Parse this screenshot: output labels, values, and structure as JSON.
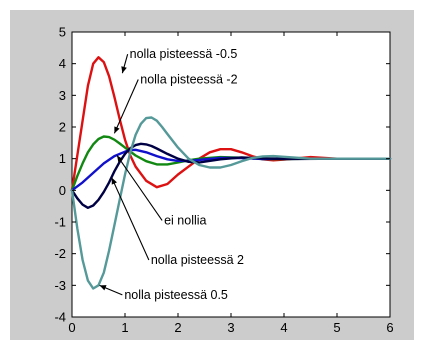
{
  "chart_data": {
    "type": "line",
    "title": "",
    "xlabel": "",
    "ylabel": "",
    "xlim": [
      0,
      6
    ],
    "ylim": [
      -4,
      5
    ],
    "xticks": [
      0,
      1,
      2,
      3,
      4,
      5,
      6
    ],
    "yticks": [
      -4,
      -3,
      -2,
      -1,
      0,
      1,
      2,
      3,
      4,
      5
    ],
    "grid": false,
    "legend": "none",
    "series": [
      {
        "color": "#dd1111",
        "x": [
          0,
          0.1,
          0.2,
          0.3,
          0.4,
          0.5,
          0.6,
          0.7,
          0.8,
          0.9,
          1.0,
          1.1,
          1.2,
          1.4,
          1.6,
          1.8,
          2.0,
          2.2,
          2.4,
          2.6,
          2.8,
          3.0,
          3.2,
          3.4,
          3.6,
          3.8,
          4.0,
          4.5,
          5.0,
          5.5,
          6.0
        ],
        "y": [
          0,
          1.1,
          2.2,
          3.3,
          4.0,
          4.2,
          4.05,
          3.6,
          2.95,
          2.25,
          1.6,
          1.1,
          0.75,
          0.3,
          0.1,
          0.2,
          0.5,
          0.75,
          1.0,
          1.2,
          1.3,
          1.3,
          1.2,
          1.08,
          0.98,
          0.95,
          0.97,
          1.05,
          1.0,
          1.0,
          1.0
        ]
      },
      {
        "color": "#118811",
        "x": [
          0,
          0.1,
          0.2,
          0.3,
          0.4,
          0.5,
          0.6,
          0.7,
          0.8,
          0.9,
          1.0,
          1.2,
          1.4,
          1.6,
          1.8,
          2.0,
          2.2,
          2.4,
          2.8,
          3.2,
          3.6,
          4.0,
          4.5,
          5.0,
          6.0
        ],
        "y": [
          0,
          0.45,
          0.85,
          1.2,
          1.45,
          1.62,
          1.7,
          1.68,
          1.6,
          1.48,
          1.35,
          1.1,
          0.92,
          0.82,
          0.82,
          0.88,
          0.95,
          1.0,
          1.05,
          1.03,
          0.99,
          0.99,
          1.0,
          1.0,
          1.0
        ]
      },
      {
        "color": "#1111cc",
        "x": [
          0,
          0.2,
          0.4,
          0.6,
          0.8,
          1.0,
          1.1,
          1.2,
          1.4,
          1.6,
          1.8,
          2.0,
          2.2,
          2.4,
          2.8,
          3.2,
          3.6,
          4.0,
          5.0,
          6.0
        ],
        "y": [
          0,
          0.25,
          0.55,
          0.85,
          1.08,
          1.22,
          1.27,
          1.28,
          1.2,
          1.08,
          0.98,
          0.93,
          0.93,
          0.96,
          1.02,
          1.02,
          0.99,
          1.0,
          1.0,
          1.0
        ]
      },
      {
        "color": "#000044",
        "x": [
          0,
          0.1,
          0.2,
          0.3,
          0.4,
          0.5,
          0.6,
          0.7,
          0.8,
          0.9,
          1.0,
          1.1,
          1.2,
          1.3,
          1.4,
          1.5,
          1.6,
          1.8,
          2.0,
          2.2,
          2.4,
          2.8,
          3.2,
          3.6,
          4.0,
          5.0,
          6.0
        ],
        "y": [
          0,
          -0.25,
          -0.45,
          -0.55,
          -0.48,
          -0.3,
          -0.05,
          0.25,
          0.6,
          0.9,
          1.15,
          1.33,
          1.43,
          1.47,
          1.45,
          1.4,
          1.32,
          1.15,
          1.0,
          0.9,
          0.88,
          0.98,
          1.04,
          1.01,
          0.99,
          1.0,
          1.0
        ]
      },
      {
        "color": "#559999",
        "x": [
          0,
          0.1,
          0.2,
          0.3,
          0.4,
          0.5,
          0.6,
          0.7,
          0.8,
          0.9,
          1.0,
          1.1,
          1.2,
          1.3,
          1.4,
          1.5,
          1.6,
          1.7,
          1.8,
          2.0,
          2.2,
          2.4,
          2.6,
          2.8,
          3.0,
          3.2,
          3.4,
          3.6,
          3.8,
          4.0,
          4.5,
          5.0,
          6.0
        ],
        "y": [
          0,
          -1.2,
          -2.2,
          -2.85,
          -3.1,
          -3.0,
          -2.6,
          -1.9,
          -1.1,
          -0.3,
          0.5,
          1.2,
          1.75,
          2.1,
          2.28,
          2.3,
          2.2,
          2.0,
          1.78,
          1.35,
          1.0,
          0.8,
          0.72,
          0.72,
          0.8,
          0.92,
          1.02,
          1.07,
          1.08,
          1.06,
          1.0,
          1.0,
          1.0
        ]
      }
    ],
    "annotations": [
      {
        "text": "nolla pisteessä -0.5",
        "label_x": 1.05,
        "label_y": 4.3,
        "point_x": 0.95,
        "point_y": 3.7
      },
      {
        "text": "nolla pisteessä -2",
        "label_x": 1.25,
        "label_y": 3.5,
        "point_x": 0.8,
        "point_y": 1.8
      },
      {
        "text": "ei nollia",
        "label_x": 1.7,
        "label_y": -0.95,
        "point_x": 0.85,
        "point_y": 1.1
      },
      {
        "text": "nolla pisteessä 2",
        "label_x": 1.45,
        "label_y": -2.2,
        "point_x": 0.75,
        "point_y": 0.4
      },
      {
        "text": "nolla pisteessä 0.5",
        "label_x": 0.95,
        "label_y": -3.3,
        "point_x": 0.52,
        "point_y": -3.0
      }
    ]
  }
}
